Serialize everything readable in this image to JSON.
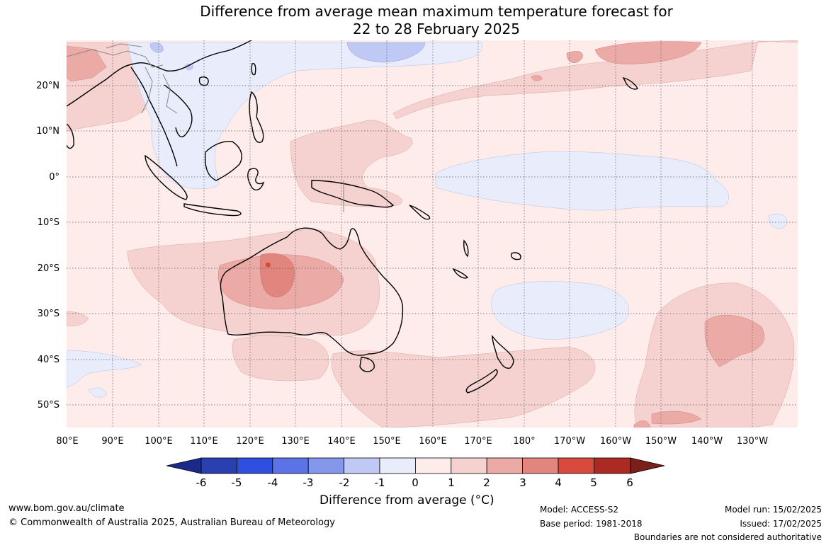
{
  "title": {
    "line1": "Difference from average mean maximum temperature forecast for",
    "line2": "22 to 28 February 2025"
  },
  "map": {
    "lon_labels": [
      "80°E",
      "90°E",
      "100°E",
      "110°E",
      "120°E",
      "130°E",
      "140°E",
      "150°E",
      "160°E",
      "170°E",
      "180°",
      "170°W",
      "160°W",
      "150°W",
      "140°W",
      "130°W"
    ],
    "lat_labels": [
      "20°N",
      "10°N",
      "0°",
      "10°S",
      "20°S",
      "30°S",
      "40°S",
      "50°S"
    ]
  },
  "colorbar": {
    "title": "Difference from average (°C)",
    "ticks": [
      "-6",
      "-5",
      "-4",
      "-3",
      "-2",
      "-1",
      "0",
      "1",
      "2",
      "3",
      "4",
      "5",
      "6"
    ],
    "colors": {
      "below": "#1b2a8a",
      "c1": "#2a3fb0",
      "c2": "#2f4fe0",
      "c3": "#5b73e6",
      "c4": "#8597ea",
      "c5": "#c0c8f4",
      "c6": "#e8ecfb",
      "c7": "#fdecea",
      "c8": "#f5d2d0",
      "c9": "#ecaaa7",
      "c10": "#e3857f",
      "c11": "#d84a3e",
      "c12": "#ab2a23",
      "above": "#7a1f1a"
    }
  },
  "footer": {
    "url": "www.bom.gov.au/climate",
    "copyright": "© Commonwealth of Australia 2025, Australian Bureau of Meteorology",
    "model": "Model: ACCESS-S2",
    "base_period": "Base period: 1981-2018",
    "model_run": "Model run: 15/02/2025",
    "issued": "Issued: 17/02/2025",
    "disclaimer": "Boundaries are not considered authoritative"
  }
}
